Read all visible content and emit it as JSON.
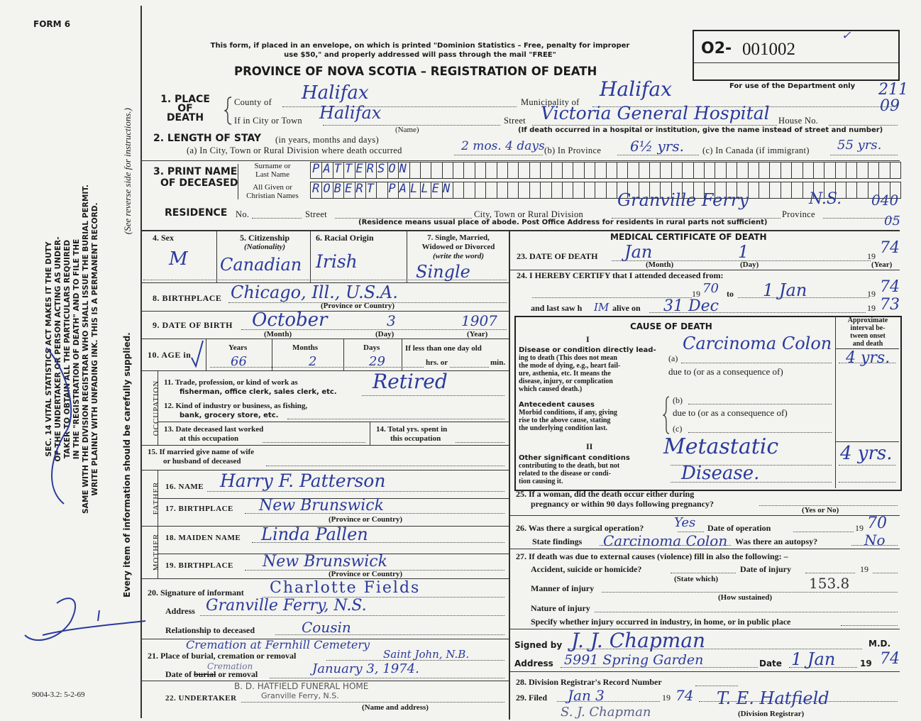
{
  "form_number": "FORM 6",
  "notice": [
    "This form, if placed in an envelope, on which is printed \"Dominion Statistics – Free, penalty for improper",
    "use $50,\" and properly addressed will pass through the mail \"FREE\""
  ],
  "title": "PROVINCE OF NOVA SCOTIA – REGISTRATION OF DEATH",
  "department": {
    "prefix": "O2-",
    "number": "001002",
    "check": "✓",
    "note": "For use of the Department only"
  },
  "codes": {
    "place_1": "211",
    "place_2": "09",
    "residence_1": "040",
    "residence_2": "05"
  },
  "margin": {
    "act_lines": [
      "SEC. 14 VITAL STATISTICS ACT MAKES IT THE DUTY",
      "OF THE UNDERTAKER OR PERSON ACTING AS UNDER-",
      "TAKER TO OBTAIN ALL THE PARTICULARS REQUIRED",
      "IN THE \"REGISTRATION OF DEATH\" AND TO FILE THE",
      "SAME WITH THE DIVISION REGISTRAR WHO SHALL ISSUE THE BURIAL PERMIT.",
      "WRITE PLAINLY WITH UNFADING INK. THIS IS A PERMANENT RECORD."
    ],
    "every_item": "Every item of information should be carefully supplied.",
    "see_reverse": "(See reverse side for instructions.)",
    "form_code": "9004-3.2: 5-2-69"
  },
  "place_of_death": {
    "label": [
      "1. PLACE",
      "OF",
      "DEATH"
    ],
    "county_label": "County of",
    "county": "Halifax",
    "city_label": "If in City or Town",
    "city": "Halifax",
    "name_caption": "(Name)",
    "municipality_label": "Municipality of",
    "municipality": "Halifax",
    "street_label": "Street",
    "street": "Victoria General Hospital",
    "house_label": "House No.",
    "hospital_note": "(If death occurred in a hospital or institution, give the name instead of street and number)"
  },
  "length_of_stay": {
    "label": "2. LENGTH OF STAY",
    "sub": "(in years, months and days)",
    "a_label": "(a) In City, Town or Rural Division where death occurred",
    "a": "2 mos. 4 days",
    "b_label": "(b) In Province",
    "b": "6½ yrs.",
    "c_label": "(c) In Canada (if immigrant)",
    "c": "55 yrs."
  },
  "name": {
    "label": [
      "3. PRINT NAME",
      "OF DECEASED"
    ],
    "surname_label": [
      "Surname or",
      "Last Name"
    ],
    "surname": "PATTERSON",
    "given_label": [
      "All Given or",
      "Christian Names"
    ],
    "given": "ROBERT PALLEN"
  },
  "residence": {
    "label": "RESIDENCE",
    "no_label": "No.",
    "street_label": "Street",
    "city_label": "City, Town or Rural Division",
    "city": "Granville Ferry",
    "province_label": "Province",
    "province": "N.S.",
    "note": "(Residence means usual place of abode. Post Office Address for residents in rural parts not sufficient)"
  },
  "personal": {
    "sex_label": "4. Sex",
    "sex": "M",
    "citizenship_label": "5. Citizenship",
    "citizenship_sub": "(Nationality)",
    "citizenship": "Canadian",
    "racial_label": "6. Racial Origin",
    "racial": "Irish",
    "marital_label": [
      "7. Single, Married,",
      "Widowed or Divorced",
      "(write the word)"
    ],
    "marital": "Single",
    "birthplace_label": "8. BIRTHPLACE",
    "birthplace": "Chicago, Ill., U.S.A.",
    "birthplace_caption": "(Province or Country)",
    "dob_label": "9. DATE OF BIRTH",
    "dob_month": "October",
    "dob_day": "3",
    "dob_year": "1907",
    "month_caption": "(Month)",
    "day_caption": "(Day)",
    "year_caption": "(Year)",
    "age_label": "10. AGE in",
    "years_label": "Years",
    "years": "66",
    "months_label": "Months",
    "months": "2",
    "days_label": "Days",
    "days": "29",
    "less_label": "If less than one day old",
    "hrs_label": "hrs. or",
    "min_label": "min."
  },
  "occupation": {
    "side_label": "OCCUPATION",
    "trade_label": [
      "11. Trade, profession, or kind of work as",
      "fisherman, office clerk, sales clerk, etc."
    ],
    "trade": "Retired",
    "industry_label": [
      "12. Kind of industry or business, as fishing,",
      "bank, grocery store, etc."
    ],
    "last_worked_label": [
      "13. Date deceased last worked",
      "at this occupation"
    ],
    "total_years_label": [
      "14. Total yrs. spent in",
      "this occupation"
    ],
    "spouse_label": [
      "15. If married give name of wife",
      "or husband of deceased"
    ]
  },
  "parents": {
    "father_label": "FATHER",
    "mother_label": "MOTHER",
    "father_name_label": "16. NAME",
    "father_name": "Harry F. Patterson",
    "father_birthplace_label": "17. BIRTHPLACE",
    "father_birthplace": "New Brunswick",
    "mother_name_label": "18. MAIDEN NAME",
    "mother_name": "Linda Pallen",
    "mother_birthplace_label": "19. BIRTHPLACE",
    "mother_birthplace": "New Brunswick",
    "caption": "(Province or Country)"
  },
  "informant": {
    "signature_label": "20. Signature of informant",
    "signature": "Charlotte Fields",
    "address_label": "Address",
    "address": "Granville Ferry, N.S.",
    "relationship_label": "Relationship to deceased",
    "relationship": "Cousin"
  },
  "burial": {
    "place_label": "21. Place of burial, cremation or removal",
    "place": "Cremation at Fernhill Cemetery",
    "place_2": "Saint John, N.B.",
    "date_label_prefix": "Date of ",
    "date_label_struck": "burial",
    "date_label_suffix": " or removal",
    "date_note": "Cremation",
    "date": "January 3, 1974."
  },
  "undertaker": {
    "label": "22. UNDERTAKER",
    "stamp": "B. D. HATFIELD FUNERAL HOME",
    "stamp_address": "Granville Ferry, N.S.",
    "caption": "(Name and address)"
  },
  "medical": {
    "title": "MEDICAL CERTIFICATE OF DEATH",
    "death_label": "23. DATE OF DEATH",
    "death_month": "Jan",
    "death_day": "1",
    "death_year": "74",
    "century": "19",
    "certify_label": "24. I HEREBY CERTIFY that I attended deceased from:",
    "from_year": "70",
    "to_label": "to",
    "to_date": "1 Jan",
    "to_year": "74",
    "last_saw_label": "and last saw h",
    "last_saw_him": "IM",
    "alive_label": "alive on",
    "last_saw_date": "31 Dec",
    "last_saw_year": "73"
  },
  "cause": {
    "title": "CAUSE OF DEATH",
    "interval_label": [
      "Approximate",
      "interval be-",
      "tween onset",
      "and death"
    ],
    "part1": "I",
    "direct_label_bold": "Disease or condition directly lead-",
    "direct_label": [
      "ing to death (This does not mean",
      "the mode of dying, e.g., heart fail-",
      "ure, asthenia, etc. It means the",
      "disease, injury, or complication",
      "which caused death.)"
    ],
    "a_label": "(a)",
    "a": "Carcinoma Colon",
    "a_interval": "4 yrs.",
    "due_to": "due to (or as a consequence of)",
    "antecedent_bold": "Antecedent causes",
    "antecedent": [
      "Morbid conditions, if any, giving",
      "rise to the above cause, stating",
      "the underlying condition last."
    ],
    "b_label": "(b)",
    "c_label": "(c)",
    "part2": "II",
    "other_bold": "Other significant conditions",
    "other": [
      "contributing to the death, but not",
      "related to the disease or condi-",
      "tion causing it."
    ],
    "other_1": "Metastatic",
    "other_2": "Disease.",
    "other_interval": "4 yrs."
  },
  "pregnancy": {
    "label": [
      "25. If a woman, did the death occur either during",
      "pregnancy or within 90 days following pregnancy?"
    ],
    "caption": "(Yes or No)"
  },
  "operation": {
    "label": "26. Was there a surgical operation?",
    "value": "Yes",
    "date_label": "Date of operation",
    "date_year": "70",
    "findings_label": "State findings",
    "findings": "Carcinoma Colon",
    "autopsy_label": "Was there an autopsy?",
    "autopsy": "No"
  },
  "external": {
    "label": "27. If death was due to external causes (violence) fill in also the following: –",
    "accident_label": "Accident, suicide or homicide?",
    "state_caption": "(State which)",
    "injury_date_label": "Date of injury",
    "manner_label": "Manner of injury",
    "manner_code": "153.8",
    "how_caption": "(How sustained)",
    "nature_label": "Nature of injury",
    "specify_label": "Specify whether injury occurred in industry, in home, or in public place"
  },
  "signature": {
    "signed_label": "Signed by",
    "signed": "J. J. Chapman",
    "md": "M.D.",
    "address_label": "Address",
    "address": "5991 Spring Garden",
    "date_label": "Date",
    "date": "1 Jan",
    "year": "74"
  },
  "registrar": {
    "record_label": "28. Division Registrar's Record Number",
    "filed_label": "29. Filed",
    "filed": "Jan 3",
    "filed_year": "74",
    "registrar_caption": "(Division Registrar)",
    "registrar": "T. E. Hatfield",
    "witness": "S. J. Chapman"
  },
  "colors": {
    "ink": "#2a3a9c",
    "paper": "#f3f3ef",
    "print": "#1b1b1b"
  }
}
